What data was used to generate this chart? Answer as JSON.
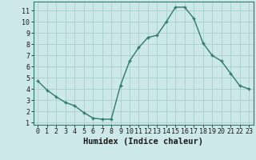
{
  "x": [
    0,
    1,
    2,
    3,
    4,
    5,
    6,
    7,
    8,
    9,
    10,
    11,
    12,
    13,
    14,
    15,
    16,
    17,
    18,
    19,
    20,
    21,
    22,
    23
  ],
  "y": [
    4.7,
    3.9,
    3.3,
    2.8,
    2.5,
    1.9,
    1.4,
    1.3,
    1.3,
    4.3,
    6.5,
    7.7,
    8.6,
    8.8,
    10.0,
    11.3,
    11.3,
    10.3,
    8.1,
    7.0,
    6.5,
    5.4,
    4.3,
    4.0
  ],
  "line_color": "#2d7a6e",
  "marker": "+",
  "bg_color": "#cce8e8",
  "grid_color": "#aacfcf",
  "xlabel": "Humidex (Indice chaleur)",
  "xlim": [
    -0.5,
    23.5
  ],
  "ylim": [
    0.8,
    11.8
  ],
  "yticks": [
    1,
    2,
    3,
    4,
    5,
    6,
    7,
    8,
    9,
    10,
    11
  ],
  "xticks": [
    0,
    1,
    2,
    3,
    4,
    5,
    6,
    7,
    8,
    9,
    10,
    11,
    12,
    13,
    14,
    15,
    16,
    17,
    18,
    19,
    20,
    21,
    22,
    23
  ],
  "tick_fontsize": 6,
  "xlabel_fontsize": 7.5,
  "linewidth": 1.0,
  "markersize": 3.5,
  "markeredgewidth": 1.0
}
